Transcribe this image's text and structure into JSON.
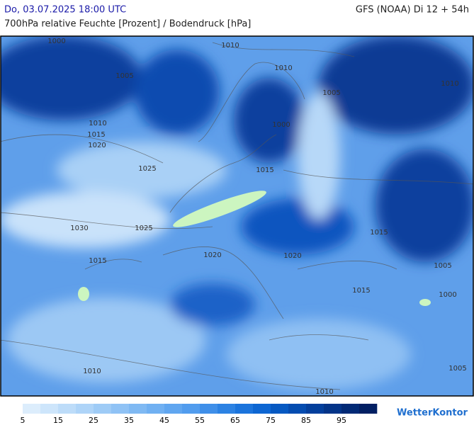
{
  "header": {
    "valid_time": "Do, 03.07.2025 18:00 UTC",
    "model_run": "GFS (NOAA) Di 12 + 54h",
    "subtitle": "700hPa relative Feuchte [Prozent] / Bodendruck [hPa]"
  },
  "isobar_labels": [
    "1000",
    "1005",
    "1010",
    "1015",
    "1020",
    "1025",
    "1030",
    "1025",
    "1010",
    "1010",
    "1005",
    "1000",
    "1015",
    "1010",
    "1015",
    "1020",
    "1005",
    "1000",
    "1015",
    "1010",
    "1010",
    "1005",
    "1015",
    "1020"
  ],
  "legend": {
    "colors": [
      "#dcedfc",
      "#cde5fb",
      "#bddcf9",
      "#aed4f8",
      "#9ecbf6",
      "#8fc2f5",
      "#7fb9f3",
      "#70b0f2",
      "#60a6f0",
      "#519cee",
      "#3f8fe9",
      "#2c82e3",
      "#1b74dc",
      "#0d66d2",
      "#0659c2",
      "#044cb0",
      "#033f9c",
      "#033488",
      "#022a76",
      "#021f63"
    ],
    "ticks": [
      "5",
      "15",
      "25",
      "35",
      "45",
      "55",
      "65",
      "75",
      "85",
      "95"
    ]
  },
  "logo": "WetterKontor"
}
